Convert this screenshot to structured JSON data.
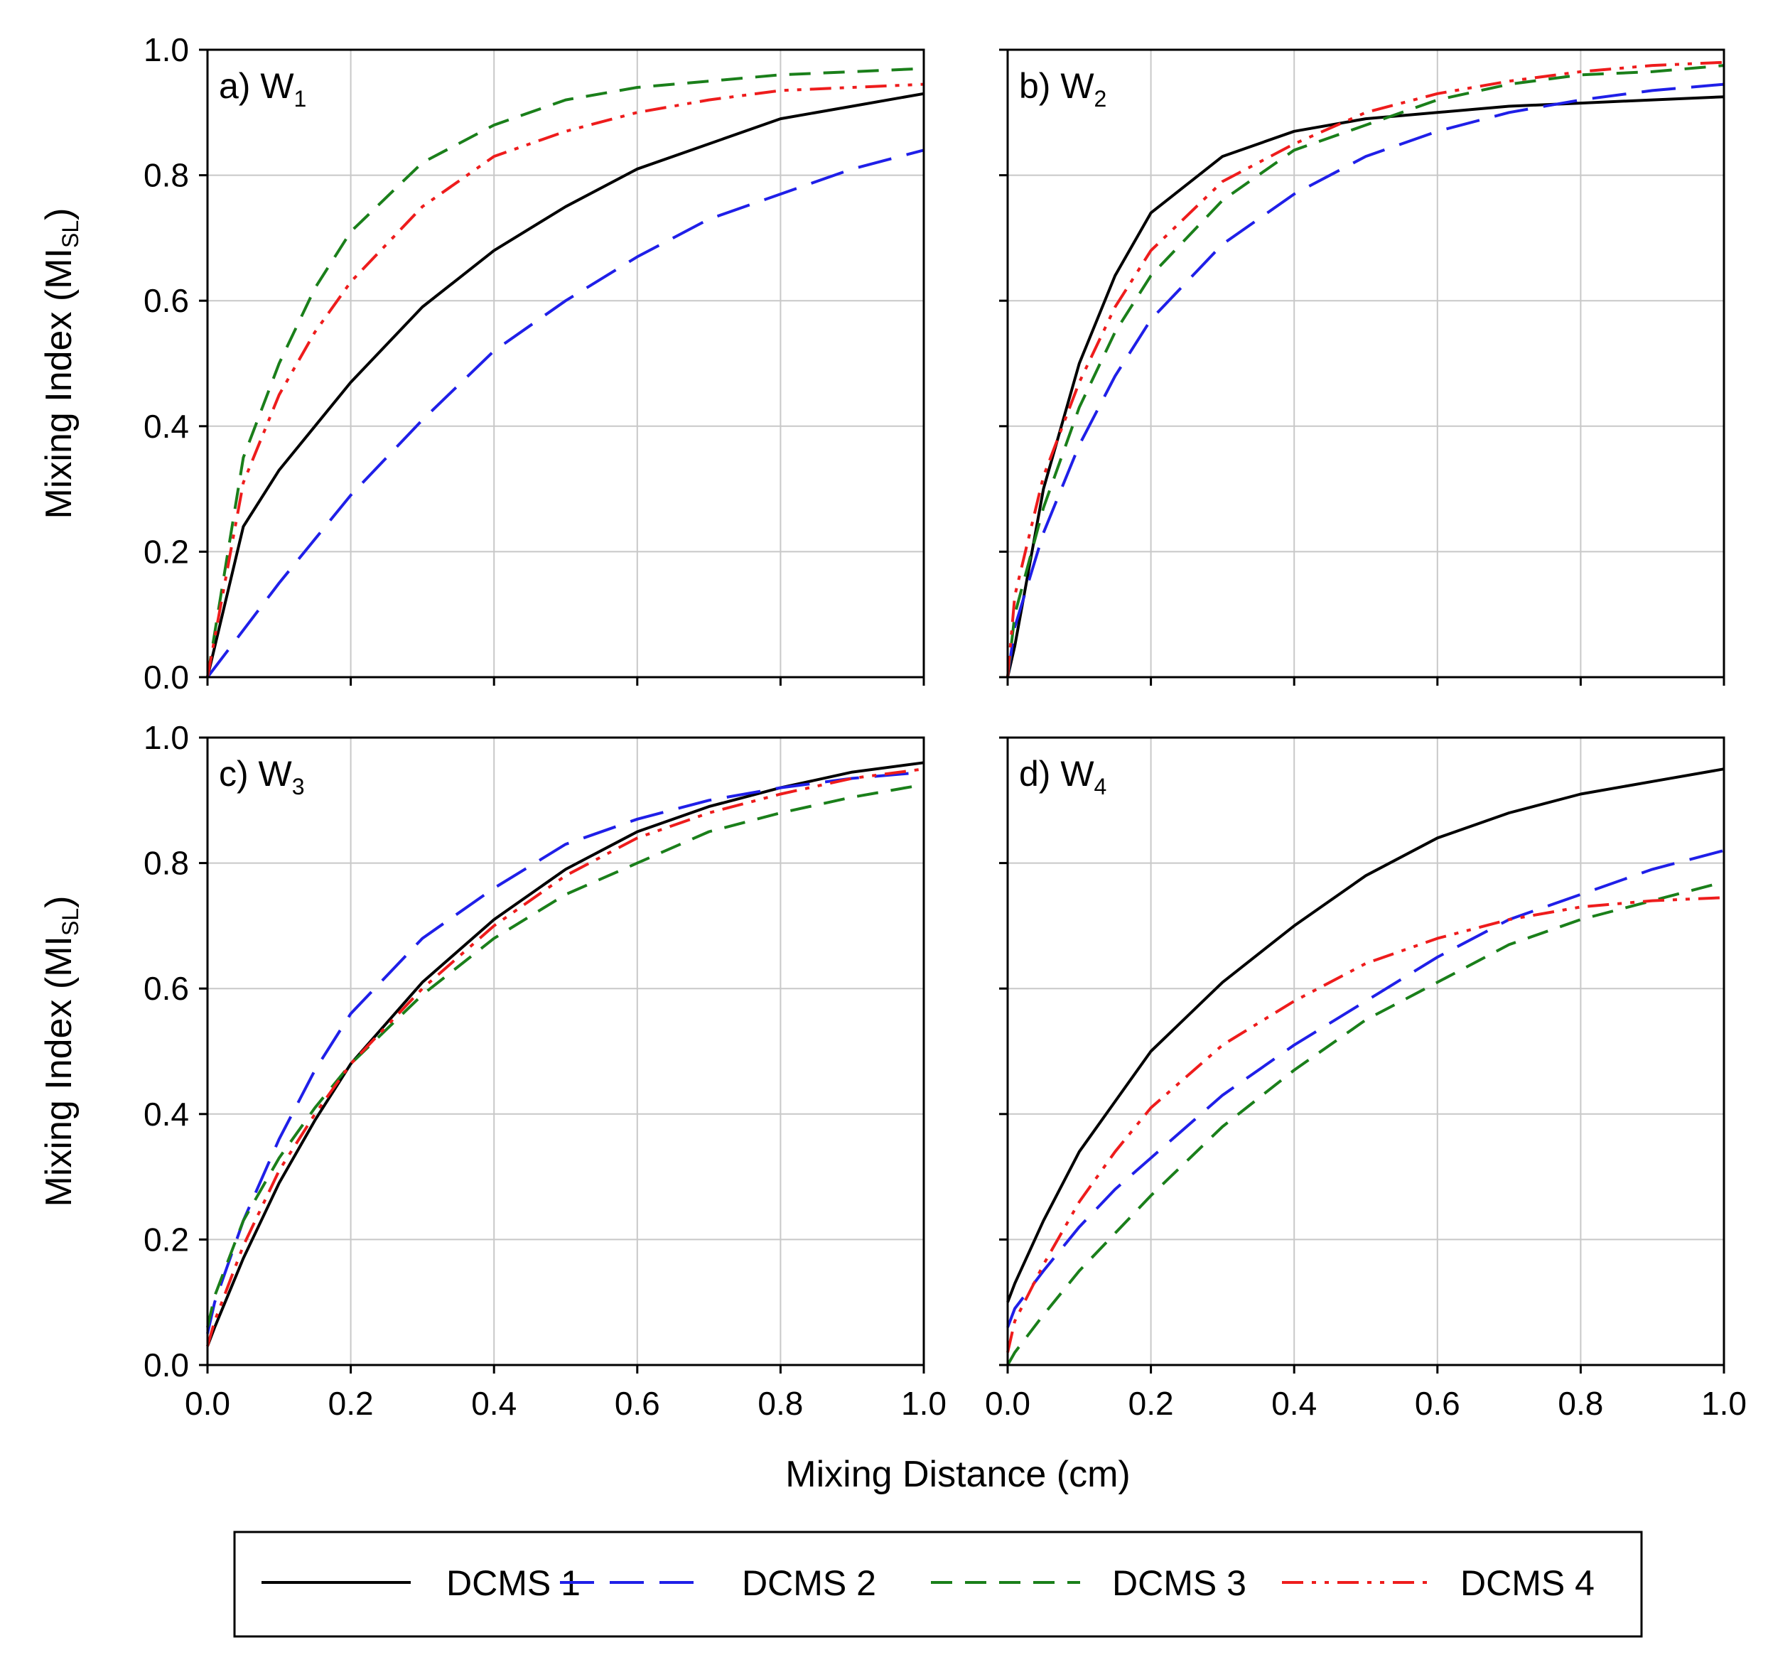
{
  "chart_data": {
    "type": "line",
    "xlabel": "Mixing Distance (cm)",
    "ylabel": "Mixing Index (MI",
    "ylabel_sub": "SL",
    "ylabel_close": ")",
    "xlim": [
      0,
      1
    ],
    "ylim": [
      0,
      1
    ],
    "x_ticks": [
      "0.0",
      "0.2",
      "0.4",
      "0.6",
      "0.8",
      "1.0"
    ],
    "y_ticks": [
      "0.0",
      "0.2",
      "0.4",
      "0.6",
      "0.8",
      "1.0"
    ],
    "grid": true,
    "legend": {
      "position": "bottom",
      "entries": [
        "DCMS 1",
        "DCMS 2",
        "DCMS 3",
        "DCMS 4"
      ]
    },
    "series_styles": [
      {
        "name": "DCMS 1",
        "color": "#000000",
        "dash": "solid"
      },
      {
        "name": "DCMS 2",
        "color": "#1f1fe8",
        "dash": "long-dash"
      },
      {
        "name": "DCMS 3",
        "color": "#1a7f1a",
        "dash": "dash"
      },
      {
        "name": "DCMS 4",
        "color": "#ee1c1c",
        "dash": "dash-dot-dot"
      }
    ],
    "panels": [
      {
        "title": "a) W",
        "subscript": "1",
        "x": [
          0,
          0.05,
          0.1,
          0.15,
          0.2,
          0.3,
          0.4,
          0.5,
          0.6,
          0.7,
          0.8,
          0.9,
          1.0
        ],
        "series": [
          {
            "name": "DCMS 1",
            "values": [
              0,
              0.24,
              0.33,
              0.4,
              0.47,
              0.59,
              0.68,
              0.75,
              0.81,
              0.85,
              0.89,
              0.91,
              0.93
            ]
          },
          {
            "name": "DCMS 2",
            "values": [
              0,
              0.075,
              0.15,
              0.22,
              0.29,
              0.41,
              0.52,
              0.6,
              0.67,
              0.73,
              0.77,
              0.81,
              0.84
            ]
          },
          {
            "name": "DCMS 3",
            "values": [
              0,
              0.35,
              0.5,
              0.62,
              0.71,
              0.82,
              0.88,
              0.92,
              0.94,
              0.95,
              0.96,
              0.965,
              0.97
            ]
          },
          {
            "name": "DCMS 4",
            "values": [
              0,
              0.31,
              0.45,
              0.55,
              0.63,
              0.75,
              0.83,
              0.87,
              0.9,
              0.92,
              0.935,
              0.94,
              0.945
            ]
          }
        ]
      },
      {
        "title": "b) W",
        "subscript": "2",
        "x": [
          0,
          0.01,
          0.05,
          0.1,
          0.15,
          0.2,
          0.3,
          0.4,
          0.5,
          0.6,
          0.7,
          0.8,
          0.9,
          1.0
        ],
        "series": [
          {
            "name": "DCMS 1",
            "values": [
              0,
              0.05,
              0.3,
              0.5,
              0.64,
              0.74,
              0.83,
              0.87,
              0.89,
              0.9,
              0.91,
              0.915,
              0.92,
              0.925
            ]
          },
          {
            "name": "DCMS 2",
            "values": [
              0,
              0.08,
              0.23,
              0.37,
              0.48,
              0.57,
              0.69,
              0.77,
              0.83,
              0.87,
              0.9,
              0.92,
              0.935,
              0.945
            ]
          },
          {
            "name": "DCMS 3",
            "values": [
              0,
              0.1,
              0.27,
              0.43,
              0.55,
              0.64,
              0.76,
              0.84,
              0.88,
              0.92,
              0.945,
              0.96,
              0.965,
              0.975
            ]
          },
          {
            "name": "DCMS 4",
            "values": [
              0,
              0.13,
              0.32,
              0.47,
              0.59,
              0.68,
              0.79,
              0.85,
              0.9,
              0.93,
              0.95,
              0.965,
              0.975,
              0.98
            ]
          }
        ]
      },
      {
        "title": "c) W",
        "subscript": "3",
        "x": [
          0,
          0.01,
          0.05,
          0.1,
          0.15,
          0.2,
          0.3,
          0.4,
          0.5,
          0.6,
          0.7,
          0.8,
          0.9,
          1.0
        ],
        "series": [
          {
            "name": "DCMS 1",
            "values": [
              0.03,
              0.06,
              0.17,
              0.29,
              0.39,
              0.48,
              0.61,
              0.71,
              0.79,
              0.85,
              0.89,
              0.92,
              0.945,
              0.96
            ]
          },
          {
            "name": "DCMS 2",
            "values": [
              0.05,
              0.1,
              0.23,
              0.36,
              0.47,
              0.56,
              0.68,
              0.76,
              0.83,
              0.87,
              0.9,
              0.92,
              0.935,
              0.945
            ]
          },
          {
            "name": "DCMS 3",
            "values": [
              0.06,
              0.11,
              0.23,
              0.33,
              0.41,
              0.48,
              0.59,
              0.68,
              0.75,
              0.8,
              0.85,
              0.88,
              0.905,
              0.925
            ]
          },
          {
            "name": "DCMS 4",
            "values": [
              0.03,
              0.07,
              0.19,
              0.31,
              0.4,
              0.48,
              0.6,
              0.7,
              0.78,
              0.84,
              0.88,
              0.91,
              0.935,
              0.95
            ]
          }
        ]
      },
      {
        "title": "d) W",
        "subscript": "4",
        "x": [
          0,
          0.01,
          0.05,
          0.1,
          0.15,
          0.2,
          0.3,
          0.4,
          0.5,
          0.6,
          0.7,
          0.8,
          0.9,
          1.0
        ],
        "series": [
          {
            "name": "DCMS 1",
            "values": [
              0.1,
              0.13,
              0.23,
              0.34,
              0.42,
              0.5,
              0.61,
              0.7,
              0.78,
              0.84,
              0.88,
              0.91,
              0.93,
              0.95
            ]
          },
          {
            "name": "DCMS 2",
            "values": [
              0.06,
              0.09,
              0.15,
              0.22,
              0.28,
              0.33,
              0.43,
              0.51,
              0.58,
              0.65,
              0.71,
              0.75,
              0.79,
              0.82
            ]
          },
          {
            "name": "DCMS 3",
            "values": [
              0,
              0.02,
              0.08,
              0.15,
              0.21,
              0.27,
              0.38,
              0.47,
              0.55,
              0.61,
              0.67,
              0.71,
              0.74,
              0.77
            ]
          },
          {
            "name": "DCMS 4",
            "values": [
              0.02,
              0.07,
              0.16,
              0.26,
              0.34,
              0.41,
              0.51,
              0.58,
              0.64,
              0.68,
              0.71,
              0.73,
              0.74,
              0.745
            ]
          }
        ]
      }
    ]
  }
}
